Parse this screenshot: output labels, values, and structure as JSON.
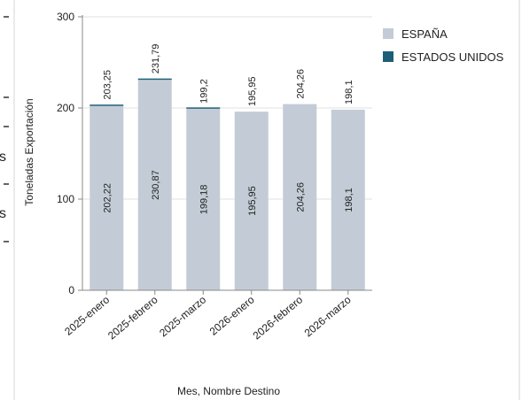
{
  "edge_fragments": [
    "s",
    "s"
  ],
  "chart_data": {
    "type": "bar",
    "stacked": true,
    "title": "",
    "xlabel": "Mes, Nombre Destino",
    "ylabel": "Toneladas Exportación",
    "ylim": [
      0,
      300
    ],
    "yticks": [
      "0",
      "100",
      "200",
      "300"
    ],
    "categories": [
      "2025-enero",
      "2025-febrero",
      "2025-marzo",
      "2026-enero",
      "2026-febrero",
      "2026-marzo"
    ],
    "series": [
      {
        "name": "ESPAÑA",
        "color": "#c3ccd6",
        "values": [
          202.22,
          230.87,
          199.18,
          195.95,
          204.26,
          198.1
        ],
        "labels": [
          "202,22",
          "230,87",
          "199,18",
          "195,95",
          "204,26",
          "198,1"
        ]
      },
      {
        "name": "ESTADOS UNIDOS",
        "color": "#1c5e78",
        "values": [
          1.03,
          0.92,
          0.02,
          0,
          0,
          0
        ]
      }
    ],
    "totals": [
      203.25,
      231.79,
      199.2,
      195.95,
      204.26,
      198.1
    ],
    "total_labels": [
      "203,25",
      "231,79",
      "199,2",
      "195,95",
      "204,26",
      "198,1"
    ],
    "legend_position": "top-right",
    "grid": true
  }
}
